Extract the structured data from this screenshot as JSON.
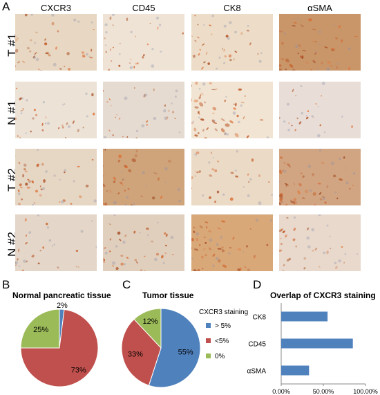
{
  "panel_letters": {
    "a": "A",
    "b": "B",
    "c": "C",
    "d": "D"
  },
  "columns": [
    "CXCR3",
    "CD45",
    "CK8",
    "αSMA"
  ],
  "rows": [
    "T #1",
    "N #1",
    "T #2",
    "N #2"
  ],
  "colors": {
    "blue": "#4f81bd",
    "red": "#c0504d",
    "green": "#9bbb59"
  },
  "chart_data": [
    {
      "type": "pie",
      "title": "Normal pancreatic tissue",
      "labels": [
        "> 5%",
        "<5%",
        "0%"
      ],
      "values": [
        2,
        73,
        25
      ],
      "value_labels": [
        "2%",
        "73%",
        "25%"
      ]
    },
    {
      "type": "pie",
      "title": "Tumor tissue",
      "legend_title": "CXCR3 staining",
      "legend_placement": "right",
      "labels": [
        "> 5%",
        "<5%",
        "0%"
      ],
      "values": [
        55,
        33,
        12
      ],
      "value_labels": [
        "55%",
        "33%",
        "12%"
      ]
    },
    {
      "type": "bar",
      "orientation": "horizontal",
      "title": "Overlap of CXCR3 staining",
      "categories": [
        "CK8",
        "CD45",
        "αSMA"
      ],
      "values": [
        55.0,
        85.0,
        33.0
      ],
      "xlim": [
        0,
        100
      ],
      "xticks": [
        "0.00%",
        "50.00%",
        "100.00%"
      ]
    }
  ]
}
